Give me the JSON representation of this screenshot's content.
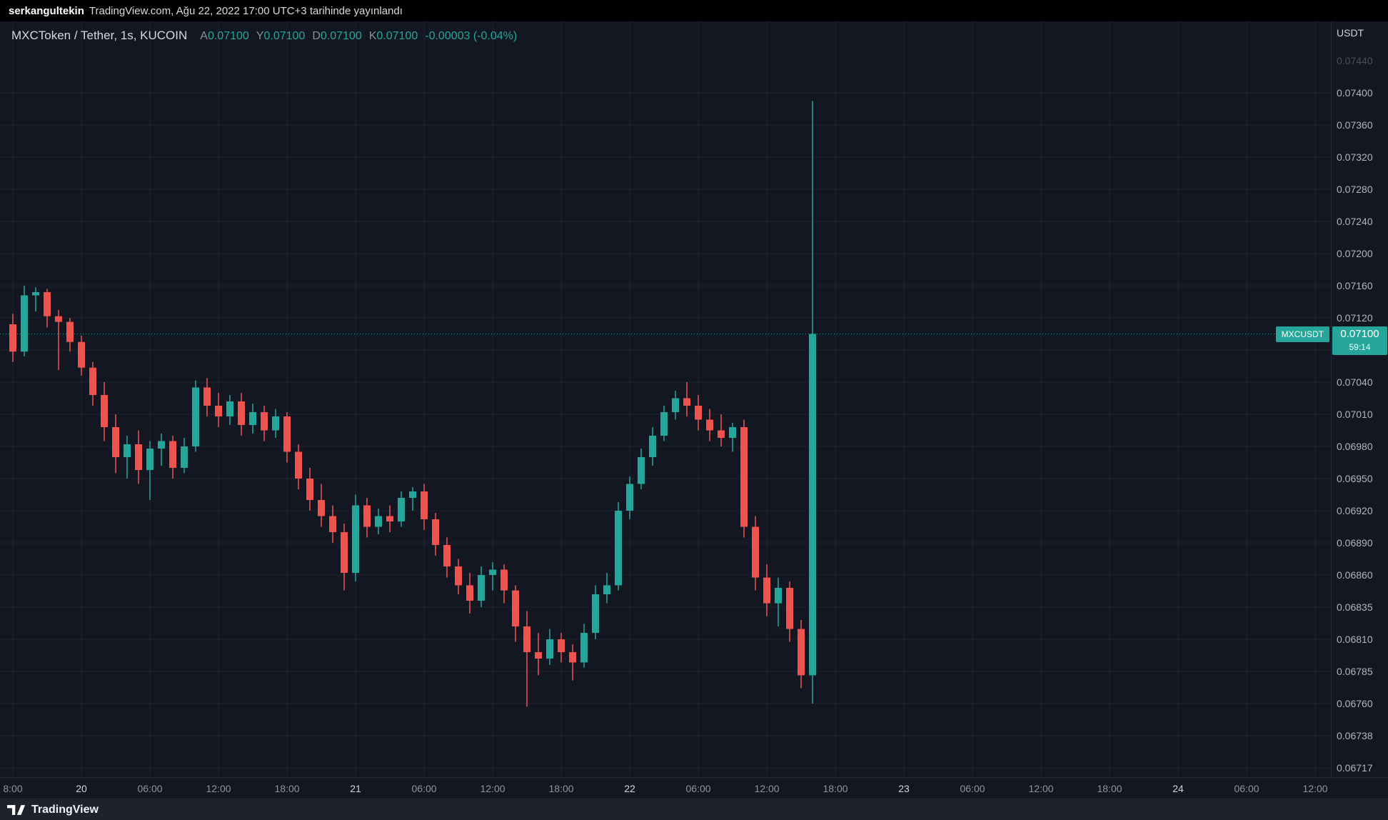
{
  "attribution": {
    "username": "serkangultekin",
    "text": "TradingView.com, Ağu 22, 2022 17:00 UTC+3 tarihinde yayınlandı"
  },
  "legend": {
    "symbol_title": "MXCToken / Tether, 1s, KUCOIN",
    "ohlc": [
      {
        "label": "A",
        "value": "0.07100"
      },
      {
        "label": "Y",
        "value": "0.07100"
      },
      {
        "label": "D",
        "value": "0.07100"
      },
      {
        "label": "K",
        "value": "0.07100"
      }
    ],
    "change": "-0.00003 (-0.04%)"
  },
  "price_scale": {
    "currency": "USDT",
    "flag": {
      "symbol": "MXCUSDT",
      "price": "0.07100",
      "countdown": "59:14"
    }
  },
  "footer": {
    "brand": "TradingView"
  },
  "chart_data": {
    "type": "candlestick",
    "title": "MXCToken / Tether, 1s, KUCOIN",
    "symbol": "MXCUSDT",
    "exchange": "KUCOIN",
    "interval": "1s",
    "quote_currency": "USDT",
    "up_color": "#26a69a",
    "down_color": "#ef5350",
    "price_line": 0.071,
    "last_price": 0.071,
    "change": "-0.00003 (-0.04%)",
    "grid": true,
    "legend_position": "top-left",
    "price_ticks": [
      {
        "value": "0.07440",
        "faint": true
      },
      {
        "value": "0.07400"
      },
      {
        "value": "0.07360"
      },
      {
        "value": "0.07320"
      },
      {
        "value": "0.07280"
      },
      {
        "value": "0.07240"
      },
      {
        "value": "0.07200"
      },
      {
        "value": "0.07160"
      },
      {
        "value": "0.07120"
      },
      {
        "value": "0.07080"
      },
      {
        "value": "0.07040"
      },
      {
        "value": "0.07010"
      },
      {
        "value": "0.06980"
      },
      {
        "value": "0.06950"
      },
      {
        "value": "0.06920"
      },
      {
        "value": "0.06890"
      },
      {
        "value": "0.06860"
      },
      {
        "value": "0.06835"
      },
      {
        "value": "0.06810"
      },
      {
        "value": "0.06785"
      },
      {
        "value": "0.06760"
      },
      {
        "value": "0.06738"
      },
      {
        "value": "0.06717"
      }
    ],
    "time_labels": [
      {
        "label": "8:00",
        "index": 0
      },
      {
        "label": "20",
        "index": 6,
        "day": true
      },
      {
        "label": "06:00",
        "index": 12
      },
      {
        "label": "12:00",
        "index": 18
      },
      {
        "label": "18:00",
        "index": 24
      },
      {
        "label": "21",
        "index": 30,
        "day": true
      },
      {
        "label": "06:00",
        "index": 36
      },
      {
        "label": "12:00",
        "index": 42
      },
      {
        "label": "18:00",
        "index": 48
      },
      {
        "label": "22",
        "index": 54,
        "day": true
      },
      {
        "label": "06:00",
        "index": 60
      },
      {
        "label": "12:00",
        "index": 66
      },
      {
        "label": "18:00",
        "index": 72
      },
      {
        "label": "23",
        "index": 78,
        "day": true
      },
      {
        "label": "06:00",
        "index": 84
      },
      {
        "label": "12:00",
        "index": 90
      },
      {
        "label": "18:00",
        "index": 96
      },
      {
        "label": "24",
        "index": 102,
        "day": true
      },
      {
        "label": "06:00",
        "index": 108
      },
      {
        "label": "12:00",
        "index": 114
      }
    ],
    "candles_ohlc": [
      [
        0.07112,
        0.07125,
        0.07065,
        0.07078
      ],
      [
        0.07078,
        0.0716,
        0.07072,
        0.07148
      ],
      [
        0.07148,
        0.07158,
        0.07128,
        0.07152
      ],
      [
        0.07152,
        0.07156,
        0.07108,
        0.07122
      ],
      [
        0.07122,
        0.0713,
        0.07055,
        0.07115
      ],
      [
        0.07115,
        0.0712,
        0.07078,
        0.0709
      ],
      [
        0.0709,
        0.07098,
        0.07048,
        0.07058
      ],
      [
        0.07058,
        0.07065,
        0.07018,
        0.07028
      ],
      [
        0.07028,
        0.0704,
        0.06985,
        0.06998
      ],
      [
        0.06998,
        0.0701,
        0.06955,
        0.0697
      ],
      [
        0.0697,
        0.0699,
        0.0695,
        0.06982
      ],
      [
        0.06982,
        0.06995,
        0.06945,
        0.06958
      ],
      [
        0.06958,
        0.06985,
        0.0693,
        0.06978
      ],
      [
        0.06978,
        0.06992,
        0.06962,
        0.06985
      ],
      [
        0.06985,
        0.0699,
        0.0695,
        0.0696
      ],
      [
        0.0696,
        0.06988,
        0.06955,
        0.0698
      ],
      [
        0.0698,
        0.07042,
        0.06975,
        0.07035
      ],
      [
        0.07035,
        0.07045,
        0.07008,
        0.07018
      ],
      [
        0.07018,
        0.0703,
        0.06998,
        0.07008
      ],
      [
        0.07008,
        0.07028,
        0.07,
        0.07022
      ],
      [
        0.07022,
        0.0703,
        0.0699,
        0.07
      ],
      [
        0.07,
        0.0702,
        0.06992,
        0.07012
      ],
      [
        0.07012,
        0.07018,
        0.06985,
        0.06995
      ],
      [
        0.06995,
        0.07015,
        0.06988,
        0.07008
      ],
      [
        0.07008,
        0.07012,
        0.06965,
        0.06975
      ],
      [
        0.06975,
        0.06982,
        0.0694,
        0.0695
      ],
      [
        0.0695,
        0.0696,
        0.0692,
        0.0693
      ],
      [
        0.0693,
        0.06945,
        0.06905,
        0.06915
      ],
      [
        0.06915,
        0.06925,
        0.0689,
        0.069
      ],
      [
        0.069,
        0.06908,
        0.06848,
        0.06862
      ],
      [
        0.06862,
        0.06935,
        0.06855,
        0.06925
      ],
      [
        0.06925,
        0.06932,
        0.06895,
        0.06905
      ],
      [
        0.06905,
        0.06922,
        0.06898,
        0.06915
      ],
      [
        0.06915,
        0.06925,
        0.069,
        0.0691
      ],
      [
        0.0691,
        0.06938,
        0.06905,
        0.06932
      ],
      [
        0.06932,
        0.06942,
        0.0692,
        0.06938
      ],
      [
        0.06938,
        0.06945,
        0.06902,
        0.06912
      ],
      [
        0.06912,
        0.06918,
        0.06878,
        0.06888
      ],
      [
        0.06888,
        0.06895,
        0.06858,
        0.06868
      ],
      [
        0.06868,
        0.06875,
        0.06845,
        0.06852
      ],
      [
        0.06852,
        0.06862,
        0.0683,
        0.0684
      ],
      [
        0.0684,
        0.06868,
        0.06835,
        0.0686
      ],
      [
        0.0686,
        0.06872,
        0.06848,
        0.06865
      ],
      [
        0.06865,
        0.0687,
        0.06838,
        0.06848
      ],
      [
        0.06848,
        0.06852,
        0.06808,
        0.0682
      ],
      [
        0.0682,
        0.06832,
        0.06758,
        0.068
      ],
      [
        0.068,
        0.06815,
        0.06782,
        0.06795
      ],
      [
        0.06795,
        0.06818,
        0.0679,
        0.0681
      ],
      [
        0.0681,
        0.06815,
        0.06792,
        0.068
      ],
      [
        0.068,
        0.06806,
        0.06778,
        0.06792
      ],
      [
        0.06792,
        0.06822,
        0.06788,
        0.06815
      ],
      [
        0.06815,
        0.06852,
        0.0681,
        0.06845
      ],
      [
        0.06845,
        0.06862,
        0.06838,
        0.06852
      ],
      [
        0.06852,
        0.06928,
        0.06848,
        0.0692
      ],
      [
        0.0692,
        0.06952,
        0.06912,
        0.06945
      ],
      [
        0.06945,
        0.06978,
        0.0694,
        0.0697
      ],
      [
        0.0697,
        0.06998,
        0.06962,
        0.0699
      ],
      [
        0.0699,
        0.07018,
        0.06985,
        0.07012
      ],
      [
        0.07012,
        0.07032,
        0.07005,
        0.07025
      ],
      [
        0.07025,
        0.0704,
        0.07008,
        0.07018
      ],
      [
        0.07018,
        0.07028,
        0.06995,
        0.07005
      ],
      [
        0.07005,
        0.07015,
        0.06985,
        0.06995
      ],
      [
        0.06995,
        0.0701,
        0.0698,
        0.06988
      ],
      [
        0.06988,
        0.07002,
        0.06975,
        0.06998
      ],
      [
        0.06998,
        0.07005,
        0.06895,
        0.06905
      ],
      [
        0.06905,
        0.06915,
        0.06848,
        0.06858
      ],
      [
        0.06858,
        0.0687,
        0.06828,
        0.06838
      ],
      [
        0.06838,
        0.06858,
        0.0682,
        0.0685
      ],
      [
        0.0685,
        0.06855,
        0.06808,
        0.06818
      ],
      [
        0.06818,
        0.06825,
        0.06772,
        0.06782
      ],
      [
        0.06782,
        0.0739,
        0.0676,
        0.071
      ]
    ]
  }
}
